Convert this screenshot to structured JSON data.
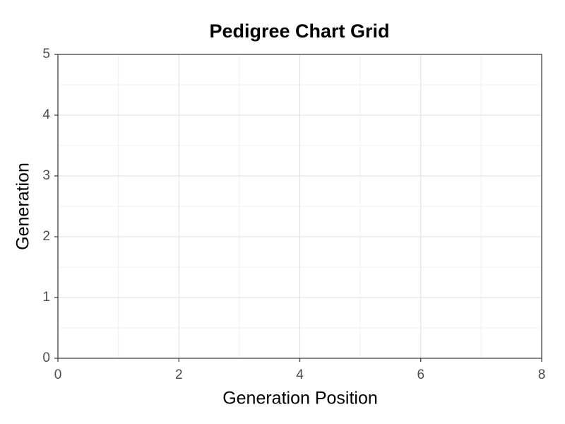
{
  "chart_data": {
    "type": "scatter",
    "title": "Pedigree Chart Grid",
    "x_label": "Generation Position",
    "y_label": "Generation",
    "xlim": [
      0,
      8
    ],
    "ylim": [
      0,
      5
    ],
    "xticks": [
      0,
      2,
      4,
      6,
      8
    ],
    "yticks": [
      0,
      1,
      2,
      3,
      4,
      5
    ],
    "grid": true
  }
}
